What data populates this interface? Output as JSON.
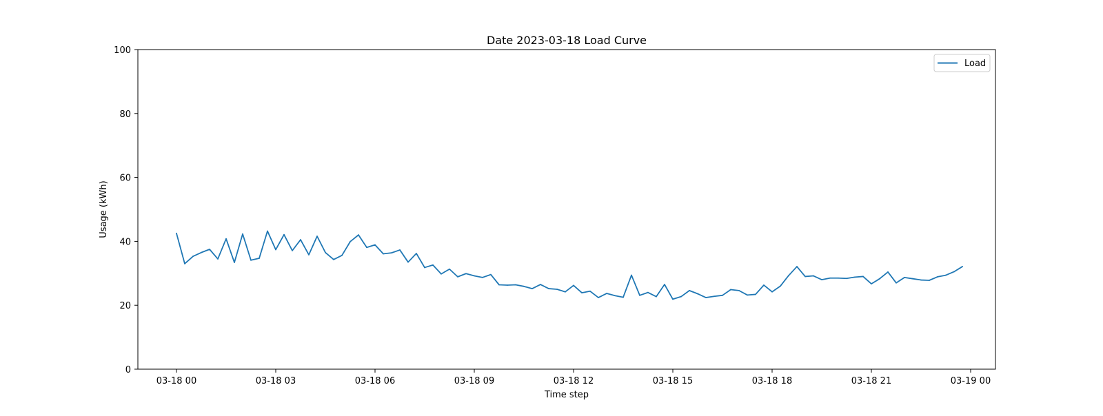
{
  "chart_data": {
    "type": "line",
    "title": "Date 2023-03-18 Load Curve",
    "xlabel": "Time step",
    "ylabel": "Usage (kWh)",
    "ylim": [
      0,
      100
    ],
    "xlim": [
      "2023-03-17T22:50",
      "2023-03-19T00:45"
    ],
    "yticks": [
      0,
      20,
      40,
      60,
      80,
      100
    ],
    "xticks": [
      {
        "value": "2023-03-18T00:00",
        "label": "03-18 00"
      },
      {
        "value": "2023-03-18T03:00",
        "label": "03-18 03"
      },
      {
        "value": "2023-03-18T06:00",
        "label": "03-18 06"
      },
      {
        "value": "2023-03-18T09:00",
        "label": "03-18 09"
      },
      {
        "value": "2023-03-18T12:00",
        "label": "03-18 12"
      },
      {
        "value": "2023-03-18T15:00",
        "label": "03-18 15"
      },
      {
        "value": "2023-03-18T18:00",
        "label": "03-18 18"
      },
      {
        "value": "2023-03-18T21:00",
        "label": "03-18 21"
      },
      {
        "value": "2023-03-19T00:00",
        "label": "03-19 00"
      }
    ],
    "grid": false,
    "legend_position": "top-right",
    "series": [
      {
        "name": "Load",
        "color": "#1f77b4",
        "x": [
          "2023-03-18T00:00",
          "2023-03-18T00:15",
          "2023-03-18T00:30",
          "2023-03-18T00:45",
          "2023-03-18T01:00",
          "2023-03-18T01:15",
          "2023-03-18T01:30",
          "2023-03-18T01:45",
          "2023-03-18T02:00",
          "2023-03-18T02:15",
          "2023-03-18T02:30",
          "2023-03-18T02:45",
          "2023-03-18T03:00",
          "2023-03-18T03:15",
          "2023-03-18T03:30",
          "2023-03-18T03:45",
          "2023-03-18T04:00",
          "2023-03-18T04:15",
          "2023-03-18T04:30",
          "2023-03-18T04:45",
          "2023-03-18T05:00",
          "2023-03-18T05:15",
          "2023-03-18T05:30",
          "2023-03-18T05:45",
          "2023-03-18T06:00",
          "2023-03-18T06:15",
          "2023-03-18T06:30",
          "2023-03-18T06:45",
          "2023-03-18T07:00",
          "2023-03-18T07:15",
          "2023-03-18T07:30",
          "2023-03-18T07:45",
          "2023-03-18T08:00",
          "2023-03-18T08:15",
          "2023-03-18T08:30",
          "2023-03-18T08:45",
          "2023-03-18T09:00",
          "2023-03-18T09:15",
          "2023-03-18T09:30",
          "2023-03-18T09:45",
          "2023-03-18T10:00",
          "2023-03-18T10:15",
          "2023-03-18T10:30",
          "2023-03-18T10:45",
          "2023-03-18T11:00",
          "2023-03-18T11:15",
          "2023-03-18T11:30",
          "2023-03-18T11:45",
          "2023-03-18T12:00",
          "2023-03-18T12:15",
          "2023-03-18T12:30",
          "2023-03-18T12:45",
          "2023-03-18T13:00",
          "2023-03-18T13:15",
          "2023-03-18T13:30",
          "2023-03-18T13:45",
          "2023-03-18T14:00",
          "2023-03-18T14:15",
          "2023-03-18T14:30",
          "2023-03-18T14:45",
          "2023-03-18T15:00",
          "2023-03-18T15:15",
          "2023-03-18T15:30",
          "2023-03-18T15:45",
          "2023-03-18T16:00",
          "2023-03-18T16:15",
          "2023-03-18T16:30",
          "2023-03-18T16:45",
          "2023-03-18T17:00",
          "2023-03-18T17:15",
          "2023-03-18T17:30",
          "2023-03-18T17:45",
          "2023-03-18T18:00",
          "2023-03-18T18:15",
          "2023-03-18T18:30",
          "2023-03-18T18:45",
          "2023-03-18T19:00",
          "2023-03-18T19:15",
          "2023-03-18T19:30",
          "2023-03-18T19:45",
          "2023-03-18T20:00",
          "2023-03-18T20:15",
          "2023-03-18T20:30",
          "2023-03-18T20:45",
          "2023-03-18T21:00",
          "2023-03-18T21:15",
          "2023-03-18T21:30",
          "2023-03-18T21:45",
          "2023-03-18T22:00",
          "2023-03-18T22:15",
          "2023-03-18T22:30",
          "2023-03-18T22:45",
          "2023-03-18T23:00",
          "2023-03-18T23:15",
          "2023-03-18T23:30",
          "2023-03-18T23:45"
        ],
        "values": [
          42.5,
          33.0,
          35.3,
          36.5,
          37.5,
          34.5,
          40.8,
          33.4,
          42.3,
          34.1,
          34.7,
          43.2,
          37.4,
          42.1,
          37.1,
          40.5,
          35.8,
          41.6,
          36.5,
          34.3,
          35.6,
          39.9,
          42.0,
          38.1,
          38.9,
          36.1,
          36.4,
          37.3,
          33.5,
          36.2,
          31.8,
          32.6,
          29.8,
          31.3,
          28.9,
          29.9,
          29.2,
          28.7,
          29.6,
          26.4,
          26.3,
          26.4,
          25.9,
          25.2,
          26.5,
          25.2,
          25.0,
          24.2,
          26.2,
          23.9,
          24.4,
          22.4,
          23.7,
          23.0,
          22.5,
          29.4,
          23.1,
          24.0,
          22.7,
          26.5,
          21.9,
          22.7,
          24.6,
          23.6,
          22.4,
          22.8,
          23.1,
          24.9,
          24.6,
          23.2,
          23.4,
          26.3,
          24.2,
          26.0,
          29.3,
          32.1,
          29.0,
          29.2,
          28.0,
          28.5,
          28.5,
          28.4,
          28.8,
          29.0,
          26.7,
          28.3,
          30.4,
          27.0,
          28.7,
          28.3,
          27.9,
          27.8,
          28.9,
          29.4,
          30.5,
          32.1
        ]
      }
    ]
  }
}
